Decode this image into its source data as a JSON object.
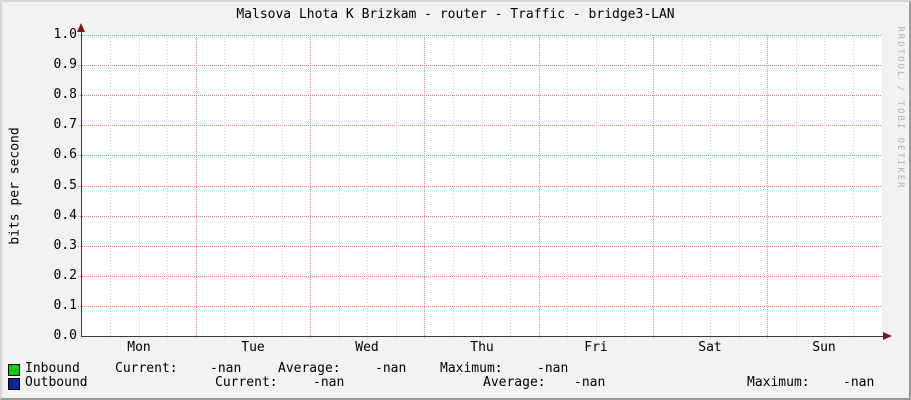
{
  "title": "Malsova Lhota K Brizkam - router - Traffic - bridge3-LAN",
  "watermark": "RRDTOOL / TOBI OETIKER",
  "chart_data": {
    "type": "line",
    "title": "Malsova Lhota K Brizkam - router - Traffic - bridge3-LAN",
    "xlabel": "",
    "ylabel": "bits per second",
    "ylim": [
      0.0,
      1.0
    ],
    "y_tick_labels": [
      "1.0",
      "0.9",
      "0.8",
      "0.7",
      "0.6",
      "0.5",
      "0.4",
      "0.3",
      "0.2",
      "0.1",
      "0.0"
    ],
    "x_tick_labels": [
      "Mon",
      "Tue",
      "Wed",
      "Thu",
      "Fri",
      "Sat",
      "Sun"
    ],
    "grid": true,
    "grid_major_every": "1 day",
    "grid_minor_every": "6 hours",
    "series": [
      {
        "name": "Inbound",
        "color": "#00cf00",
        "values": []
      },
      {
        "name": "Outbound",
        "color": "#002a97",
        "values": []
      }
    ],
    "note_values_shown": "-nan"
  },
  "legend": {
    "rows": [
      {
        "label": "Inbound",
        "swatch_color": "#00cf00",
        "cols": [
          {
            "k": "Current:",
            "v": "-nan"
          },
          {
            "k": "Average:",
            "v": "-nan"
          },
          {
            "k": "Maximum:",
            "v": "-nan"
          }
        ]
      },
      {
        "label": "Outbound",
        "swatch_color": "#002a97",
        "cols": [
          {
            "k": "Current:",
            "v": "-nan"
          },
          {
            "k": "Average:",
            "v": "-nan"
          },
          {
            "k": "Maximum:",
            "v": "-nan"
          }
        ]
      }
    ]
  },
  "colors": {
    "background": "#f2f2f2",
    "canvas": "#ffffff",
    "frame_light": "#d6d6d6",
    "frame_dark": "#9a9a9a",
    "axis": "#3a3a3a",
    "arrow": "#8b1212",
    "grid_major": "#e88a8a",
    "grid_minor": "#c9c9c9",
    "text": "#000000",
    "watermark_text": "#b3b3b3",
    "inbound": "#00cf00",
    "outbound": "#002a97"
  }
}
